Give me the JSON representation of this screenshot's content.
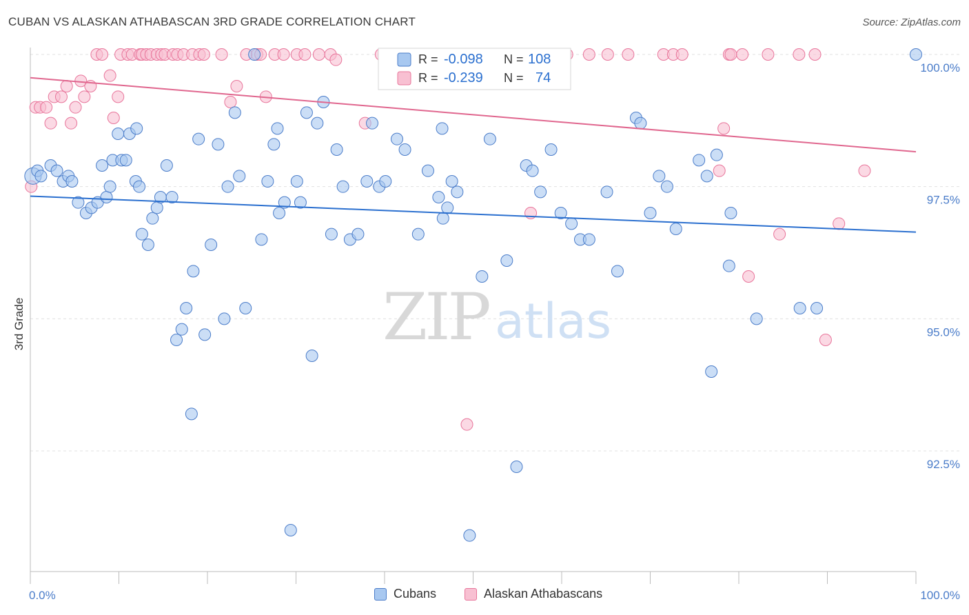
{
  "title": "CUBAN VS ALASKAN ATHABASCAN 3RD GRADE CORRELATION CHART",
  "source": "Source: ZipAtlas.com",
  "watermark": {
    "zip": "ZIP",
    "atlas": "atlas"
  },
  "legend_box": {
    "rows": [
      {
        "r_label": "R =",
        "r_value": "-0.098",
        "n_label": "N =",
        "n_value": "108"
      },
      {
        "r_label": "R =",
        "r_value": "-0.239",
        "n_label": "N =",
        "n_value": "74"
      }
    ]
  },
  "legend_bottom": {
    "cubans": "Cubans",
    "alaskan": "Alaskan Athabascans"
  },
  "colors": {
    "blue": "#4a7cc9",
    "blue_fill": "#a8c8f0",
    "blue_line": "#2a6fcf",
    "pink": "#e8749a",
    "pink_fill": "#f8c0d2",
    "pink_line": "#e0668e",
    "grid": "#e0e0e0"
  },
  "chart_data": {
    "type": "scatter",
    "xlabel": "",
    "ylabel": "3rd Grade",
    "xlim": [
      0,
      100
    ],
    "ylim": [
      90.9,
      100.2
    ],
    "y_ticks": [
      {
        "value": 100.0,
        "label": "100.0%"
      },
      {
        "value": 97.5,
        "label": "97.5%"
      },
      {
        "value": 95.0,
        "label": "95.0%"
      },
      {
        "value": 92.5,
        "label": "92.5%"
      }
    ],
    "x_tick_labels": [
      {
        "value": 0,
        "label": "0.0%"
      },
      {
        "value": 100,
        "label": "100.0%"
      }
    ],
    "series": [
      {
        "name": "Cubans",
        "r": -0.098,
        "n": 108,
        "trend": {
          "x": [
            0,
            100
          ],
          "y": [
            97.32,
            96.64
          ]
        },
        "points": [
          [
            0.3,
            97.7
          ],
          [
            0.8,
            97.8
          ],
          [
            1.2,
            97.7
          ],
          [
            2.3,
            97.9
          ],
          [
            3.0,
            97.8
          ],
          [
            3.7,
            97.6
          ],
          [
            4.3,
            97.7
          ],
          [
            4.7,
            97.6
          ],
          [
            5.4,
            97.2
          ],
          [
            6.3,
            97.0
          ],
          [
            6.9,
            97.1
          ],
          [
            7.6,
            97.2
          ],
          [
            8.1,
            97.9
          ],
          [
            8.6,
            97.3
          ],
          [
            9.0,
            97.5
          ],
          [
            9.3,
            98.0
          ],
          [
            9.9,
            98.5
          ],
          [
            10.3,
            98.0
          ],
          [
            10.8,
            98.0
          ],
          [
            11.2,
            98.5
          ],
          [
            11.9,
            97.6
          ],
          [
            12.3,
            97.5
          ],
          [
            12.6,
            96.6
          ],
          [
            13.3,
            96.4
          ],
          [
            13.8,
            96.9
          ],
          [
            14.3,
            97.1
          ],
          [
            14.7,
            97.3
          ],
          [
            15.4,
            97.9
          ],
          [
            16.0,
            97.3
          ],
          [
            16.5,
            94.6
          ],
          [
            17.1,
            94.8
          ],
          [
            17.6,
            95.2
          ],
          [
            18.2,
            93.2
          ],
          [
            18.4,
            95.9
          ],
          [
            19.0,
            98.4
          ],
          [
            19.7,
            94.7
          ],
          [
            20.4,
            96.4
          ],
          [
            21.2,
            98.3
          ],
          [
            21.9,
            95.0
          ],
          [
            22.3,
            97.5
          ],
          [
            23.1,
            98.9
          ],
          [
            23.6,
            97.7
          ],
          [
            24.3,
            95.2
          ],
          [
            25.3,
            100.0
          ],
          [
            26.1,
            96.5
          ],
          [
            26.8,
            97.6
          ],
          [
            27.5,
            98.3
          ],
          [
            28.1,
            97.0
          ],
          [
            28.7,
            97.2
          ],
          [
            29.4,
            91.0
          ],
          [
            30.1,
            97.6
          ],
          [
            30.5,
            97.2
          ],
          [
            31.2,
            98.9
          ],
          [
            31.8,
            94.3
          ],
          [
            32.4,
            98.7
          ],
          [
            33.1,
            99.1
          ],
          [
            34.0,
            96.6
          ],
          [
            34.6,
            98.2
          ],
          [
            35.3,
            97.5
          ],
          [
            36.1,
            96.5
          ],
          [
            37.0,
            96.6
          ],
          [
            38.0,
            97.6
          ],
          [
            38.6,
            98.7
          ],
          [
            39.4,
            97.5
          ],
          [
            40.1,
            97.6
          ],
          [
            41.4,
            98.4
          ],
          [
            42.3,
            98.2
          ],
          [
            43.8,
            96.6
          ],
          [
            44.9,
            97.8
          ],
          [
            46.1,
            97.3
          ],
          [
            46.6,
            96.9
          ],
          [
            47.1,
            97.1
          ],
          [
            47.6,
            97.6
          ],
          [
            48.2,
            97.4
          ],
          [
            49.6,
            90.9
          ],
          [
            51.0,
            95.8
          ],
          [
            51.9,
            98.4
          ],
          [
            53.8,
            96.1
          ],
          [
            54.9,
            92.2
          ],
          [
            56.0,
            97.9
          ],
          [
            56.7,
            97.8
          ],
          [
            57.6,
            97.4
          ],
          [
            58.8,
            98.2
          ],
          [
            59.9,
            97.0
          ],
          [
            61.1,
            96.8
          ],
          [
            62.1,
            96.5
          ],
          [
            63.1,
            96.5
          ],
          [
            65.1,
            97.4
          ],
          [
            66.3,
            95.9
          ],
          [
            68.4,
            98.8
          ],
          [
            68.9,
            98.7
          ],
          [
            70.0,
            97.0
          ],
          [
            71.0,
            97.7
          ],
          [
            71.9,
            97.5
          ],
          [
            72.9,
            96.7
          ],
          [
            75.5,
            98.0
          ],
          [
            76.4,
            97.7
          ],
          [
            76.9,
            94.0
          ],
          [
            77.5,
            98.1
          ],
          [
            78.9,
            96.0
          ],
          [
            79.1,
            97.0
          ],
          [
            82.0,
            95.0
          ],
          [
            86.9,
            95.2
          ],
          [
            88.8,
            95.2
          ],
          [
            100.0,
            100.0
          ],
          [
            12.0,
            98.6
          ],
          [
            27.9,
            98.6
          ],
          [
            46.5,
            98.6
          ]
        ]
      },
      {
        "name": "Alaskan Athabascans",
        "r": -0.239,
        "n": 74,
        "trend": {
          "x": [
            0,
            100
          ],
          "y": [
            99.56,
            98.16
          ]
        },
        "points": [
          [
            0.1,
            97.5
          ],
          [
            0.6,
            99.0
          ],
          [
            1.1,
            99.0
          ],
          [
            1.8,
            99.0
          ],
          [
            2.3,
            98.7
          ],
          [
            2.7,
            99.2
          ],
          [
            3.5,
            99.2
          ],
          [
            4.1,
            99.4
          ],
          [
            4.6,
            98.7
          ],
          [
            5.1,
            99.0
          ],
          [
            5.7,
            99.5
          ],
          [
            6.1,
            99.2
          ],
          [
            6.8,
            99.4
          ],
          [
            7.5,
            100.0
          ],
          [
            8.1,
            100.0
          ],
          [
            9.0,
            99.6
          ],
          [
            9.4,
            98.8
          ],
          [
            9.9,
            99.2
          ],
          [
            10.2,
            100.0
          ],
          [
            11.0,
            100.0
          ],
          [
            11.5,
            100.0
          ],
          [
            12.4,
            100.0
          ],
          [
            12.6,
            100.0
          ],
          [
            13.1,
            100.0
          ],
          [
            13.6,
            100.0
          ],
          [
            14.3,
            100.0
          ],
          [
            14.8,
            100.0
          ],
          [
            15.2,
            100.0
          ],
          [
            16.1,
            100.0
          ],
          [
            16.6,
            100.0
          ],
          [
            17.3,
            100.0
          ],
          [
            18.3,
            100.0
          ],
          [
            19.1,
            100.0
          ],
          [
            19.6,
            100.0
          ],
          [
            21.6,
            100.0
          ],
          [
            22.6,
            99.1
          ],
          [
            23.3,
            99.4
          ],
          [
            24.4,
            100.0
          ],
          [
            25.6,
            100.0
          ],
          [
            26.0,
            100.0
          ],
          [
            26.6,
            99.2
          ],
          [
            27.6,
            100.0
          ],
          [
            28.6,
            100.0
          ],
          [
            30.1,
            100.0
          ],
          [
            31.0,
            100.0
          ],
          [
            32.6,
            100.0
          ],
          [
            33.9,
            100.0
          ],
          [
            34.5,
            99.9
          ],
          [
            37.8,
            98.7
          ],
          [
            39.6,
            100.0
          ],
          [
            42.0,
            100.0
          ],
          [
            49.3,
            93.0
          ],
          [
            51.1,
            100.0
          ],
          [
            56.5,
            97.0
          ],
          [
            60.6,
            100.0
          ],
          [
            63.1,
            100.0
          ],
          [
            65.2,
            100.0
          ],
          [
            67.5,
            100.0
          ],
          [
            71.5,
            100.0
          ],
          [
            72.6,
            100.0
          ],
          [
            73.6,
            100.0
          ],
          [
            77.8,
            97.8
          ],
          [
            78.3,
            98.6
          ],
          [
            78.9,
            100.0
          ],
          [
            79.1,
            100.0
          ],
          [
            80.4,
            100.0
          ],
          [
            81.1,
            95.8
          ],
          [
            83.3,
            100.0
          ],
          [
            84.6,
            96.6
          ],
          [
            86.8,
            100.0
          ],
          [
            88.6,
            100.0
          ],
          [
            89.8,
            94.6
          ],
          [
            91.3,
            96.8
          ],
          [
            94.2,
            97.8
          ]
        ]
      }
    ]
  }
}
